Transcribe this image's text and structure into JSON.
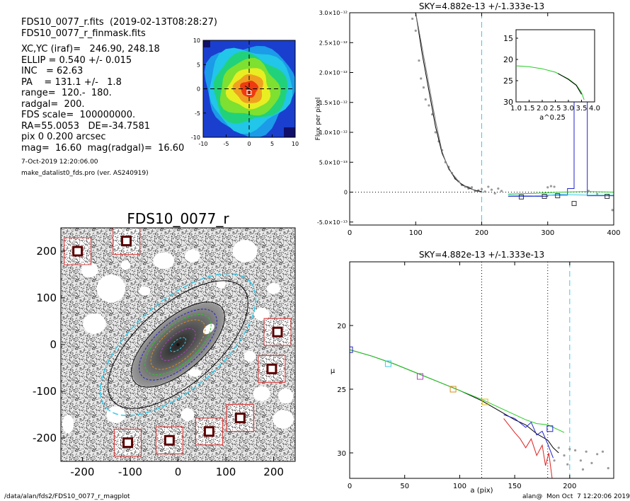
{
  "header": {
    "line1": "FDS10_0077_r.fits  (2019-02-13T08:28:27)",
    "line2": "FDS10_0077_r_finmask.fits"
  },
  "info_lines": [
    "XC,YC (iraf)=   246.90, 248.18",
    "ELLIP = 0.540 +/- 0.015",
    "INC   = 62.63",
    "PA    = 131.1 +/-   1.8",
    "range=  120.-  180.",
    "radgal=  200.",
    "FDS scale=  100000000.",
    "RA=55.0053   DE=-34.7581",
    "pix 0 0.200 arcsec",
    "mag=  16.60  mag(radgal)=  16.60"
  ],
  "date_line": "7-Oct-2019 12:20:06.00",
  "program_line": "make_datalist0_fds.pro (ver. AS240919)",
  "footer": {
    "left": "/data/alan/fds2/FDS10_0077_r_magplot",
    "right": "alan@  Mon Oct  7 12:20:06 2019"
  },
  "colors": {
    "profile_black": "#000000",
    "profile_green": "#22cc22",
    "profile_blue": "#2222cc",
    "profile_red": "#dd2222",
    "profile_gray": "#777777",
    "points_gray": "#9a9a9a",
    "sky_cyan": "#33ccee",
    "mask_red": "#dd4444",
    "ellipse_orange": "#d98c1a",
    "ellipse_purple": "#b040c0"
  },
  "chart_data": [
    {
      "type": "heatmap",
      "title": "",
      "x_ticks": [
        "-10",
        "-5",
        "0",
        "5",
        "10"
      ],
      "y_ticks": [
        "10",
        "5",
        "0",
        "-5",
        "-10"
      ],
      "xlim": [
        -10,
        10
      ],
      "ylim": [
        -10,
        10
      ],
      "colormap": [
        "#1a1aa0",
        "#1b73e8",
        "#22c6e8",
        "#21d27a",
        "#7ee030",
        "#f0f020",
        "#f0a020",
        "#ee3a10"
      ],
      "levels": [
        {
          "rx": 9.6,
          "ry": 9.2,
          "color": "#1b9be8"
        },
        {
          "rx": 9.0,
          "ry": 8.4,
          "color": "#22c6e8"
        },
        {
          "rx": 8.0,
          "ry": 7.0,
          "color": "#21d27a"
        },
        {
          "rx": 6.4,
          "ry": 5.8,
          "color": "#7ee030"
        },
        {
          "rx": 4.6,
          "ry": 4.2,
          "color": "#e8ee22"
        },
        {
          "rx": 3.2,
          "ry": 3.0,
          "color": "#f0a020"
        },
        {
          "rx": 1.9,
          "ry": 1.7,
          "color": "#ee3a10"
        }
      ]
    },
    {
      "type": "image",
      "title": "FDS10_0077_r",
      "x_ticks": [
        "-200",
        "-100",
        "0",
        "100",
        "200"
      ],
      "y_ticks": [
        "200",
        "100",
        "0",
        "-100",
        "-200"
      ],
      "xlim": [
        -245,
        245
      ],
      "ylim": [
        -250,
        250
      ],
      "masks": [
        {
          "x": -210,
          "y": 200,
          "r": 12
        },
        {
          "x": -108,
          "y": 222,
          "r": 12
        },
        {
          "x": 208,
          "y": 27,
          "r": 12
        },
        {
          "x": 196,
          "y": -52,
          "r": 12
        },
        {
          "x": 130,
          "y": -157,
          "r": 12
        },
        {
          "x": 65,
          "y": -186,
          "r": 12
        },
        {
          "x": -18,
          "y": -205,
          "r": 12
        },
        {
          "x": -105,
          "y": -210,
          "r": 12
        }
      ],
      "holes": [
        {
          "x": -185,
          "y": 160,
          "rx": 18,
          "ry": 16
        },
        {
          "x": -140,
          "y": 120,
          "rx": 30,
          "ry": 30
        },
        {
          "x": -30,
          "y": 180,
          "rx": 22,
          "ry": 18
        },
        {
          "x": 30,
          "y": 190,
          "rx": 16,
          "ry": 14
        },
        {
          "x": 140,
          "y": 200,
          "rx": 26,
          "ry": 24
        },
        {
          "x": -110,
          "y": 170,
          "rx": 10,
          "ry": 10
        },
        {
          "x": -175,
          "y": 45,
          "rx": 24,
          "ry": 22
        },
        {
          "x": 175,
          "y": 65,
          "rx": 16,
          "ry": 14
        },
        {
          "x": 150,
          "y": -25,
          "rx": 12,
          "ry": 12
        },
        {
          "x": 175,
          "y": -105,
          "rx": 18,
          "ry": 16
        },
        {
          "x": 225,
          "y": -110,
          "rx": 16,
          "ry": 16
        },
        {
          "x": 220,
          "y": -160,
          "rx": 22,
          "ry": 20
        },
        {
          "x": 20,
          "y": -150,
          "rx": 14,
          "ry": 14
        },
        {
          "x": -130,
          "y": -150,
          "rx": 20,
          "ry": 18
        },
        {
          "x": -230,
          "y": -170,
          "rx": 12,
          "ry": 20
        },
        {
          "x": -70,
          "y": 115,
          "rx": 12,
          "ry": 10
        },
        {
          "x": 90,
          "y": 130,
          "rx": 10,
          "ry": 10
        },
        {
          "x": 200,
          "y": 120,
          "rx": 14,
          "ry": 12
        },
        {
          "x": 35,
          "y": -60,
          "rx": 14,
          "ry": 8
        }
      ],
      "ellipse": {
        "pa_deg": 131.1,
        "ellip": 0.54
      },
      "isophote_a": [
        {
          "a": 20,
          "color": "#33ccee"
        },
        {
          "a": 45,
          "color": "#b040c0"
        },
        {
          "a": 70,
          "color": "#d98c1a"
        },
        {
          "a": 85,
          "color": "#22cc22"
        },
        {
          "a": 100,
          "color": "#2222cc"
        },
        {
          "a": 120,
          "color": "#000000"
        },
        {
          "a": 180,
          "color": "#000000"
        },
        {
          "a": 200,
          "color": "#33ccee"
        }
      ]
    },
    {
      "type": "line",
      "title": "SKY=4.882e-13 +/-1.333e-13",
      "xlabel": "",
      "ylabel": "Flux per pixel",
      "xlim": [
        0,
        400
      ],
      "ylim": [
        -5.5e-13,
        3e-12
      ],
      "x_ticks": [
        0,
        100,
        200,
        300,
        400
      ],
      "y_ticks": [
        {
          "v": 3e-12,
          "label": "3.0×10⁻¹²"
        },
        {
          "v": 2.5e-12,
          "label": "2.5×10⁻¹²"
        },
        {
          "v": 2e-12,
          "label": "2.0×10⁻¹²"
        },
        {
          "v": 1.5e-12,
          "label": "1.5×10⁻¹²"
        },
        {
          "v": 1e-12,
          "label": "1.0×10⁻¹²"
        },
        {
          "v": 5e-13,
          "label": "5.0×10⁻¹³"
        },
        {
          "v": 0,
          "label": "0"
        },
        {
          "v": -5e-13,
          "label": "-5.0×10⁻¹³"
        }
      ],
      "sky_line_x": 200,
      "series": [
        {
          "color": "#000000",
          "x": [
            100,
            110,
            120,
            130,
            140,
            150,
            160,
            170,
            180,
            190,
            200
          ],
          "y": [
            3e-12,
            2.3e-12,
            1.7e-12,
            1.1e-12,
            6.5e-13,
            4e-13,
            2.2e-13,
            1.3e-13,
            7e-14,
            3e-14,
            1e-14
          ]
        },
        {
          "color": "#777777",
          "x": [
            100,
            110,
            120,
            130,
            140,
            150,
            160,
            170,
            180,
            190,
            200
          ],
          "y": [
            3e-12,
            2.4e-12,
            1.8e-12,
            1.2e-12,
            6.8e-13,
            3.8e-13,
            2.5e-13,
            1.1e-13,
            9e-14,
            2e-14,
            0.0
          ]
        },
        {
          "color": "#2222cc",
          "step": true,
          "x": [
            240,
            260,
            280,
            300,
            320,
            330,
            340,
            350,
            360,
            400
          ],
          "y": [
            -7e-14,
            -7e-14,
            -7e-14,
            -5e-14,
            -5e-14,
            6e-14,
            2.4e-12,
            2.4e-12,
            -6e-14,
            -6e-14
          ]
        },
        {
          "color": "#22cc22",
          "x": [
            240,
            280,
            320,
            360,
            400
          ],
          "y": [
            -3e-14,
            -2e-14,
            0.0,
            1e-14,
            0.0
          ]
        },
        {
          "color": "#33ccee",
          "x": [
            240,
            280,
            320,
            360,
            400
          ],
          "y": [
            -5e-14,
            -6e-14,
            -4e-14,
            -5e-14,
            -5e-14
          ]
        }
      ],
      "points": [
        [
          95,
          2.9e-12
        ],
        [
          100,
          2.7e-12
        ],
        [
          105,
          2.2e-12
        ],
        [
          108,
          1.9e-12
        ],
        [
          112,
          1.75e-12
        ],
        [
          115,
          1.55e-12
        ],
        [
          120,
          1.45e-12
        ],
        [
          125,
          1.3e-12
        ],
        [
          130,
          1e-12
        ],
        [
          135,
          8.5e-13
        ],
        [
          140,
          7e-13
        ],
        [
          145,
          5e-13
        ],
        [
          150,
          4.2e-13
        ],
        [
          155,
          3.2e-13
        ],
        [
          160,
          2.3e-13
        ],
        [
          165,
          1.8e-13
        ],
        [
          170,
          1.2e-13
        ],
        [
          175,
          9e-14
        ],
        [
          180,
          6e-14
        ],
        [
          185,
          8e-14
        ],
        [
          190,
          2e-14
        ],
        [
          195,
          3e-14
        ],
        [
          200,
          5e-14
        ],
        [
          205,
          1e-14
        ],
        [
          210,
          9e-14
        ],
        [
          215,
          4e-14
        ],
        [
          220,
          -2e-14
        ],
        [
          225,
          6e-14
        ],
        [
          230,
          2e-14
        ],
        [
          300,
          8e-14
        ],
        [
          305,
          1e-13
        ],
        [
          310,
          9e-14
        ],
        [
          362,
          2e-14
        ],
        [
          375,
          -3e-14
        ],
        [
          392,
          -5e-14
        ],
        [
          398,
          -3e-13
        ]
      ],
      "squares": [
        [
          260,
          -8e-14
        ],
        [
          295,
          -7e-14
        ],
        [
          315,
          -6e-14
        ],
        [
          340,
          -1.9e-13
        ],
        [
          390,
          -7e-14
        ]
      ],
      "inset": {
        "xlabel": "a^0.25",
        "xlim": [
          1.0,
          4.0
        ],
        "ylim": [
          30,
          13
        ],
        "x_ticks": [
          "1.0",
          "1.5",
          "2.0",
          "2.5",
          "3.0",
          "3.5",
          "4.0"
        ],
        "y_ticks": [
          15,
          20,
          25,
          30
        ],
        "series": [
          {
            "color": "#22cc22",
            "x": [
              1.0,
              1.5,
              2.0,
              2.5,
              3.0,
              3.3,
              3.5,
              3.6
            ],
            "y": [
              21.5,
              21.7,
              22.2,
              23.0,
              24.6,
              26.0,
              27.8,
              29.5
            ]
          },
          {
            "color": "#000000",
            "x": [
              2.6,
              3.0,
              3.3,
              3.5
            ],
            "y": [
              23.3,
              24.7,
              26.1,
              28.2
            ]
          }
        ]
      }
    },
    {
      "type": "line",
      "title": "SKY=4.882e-13 +/-1.333e-13",
      "xlabel": "a (pix)",
      "ylabel": "μ",
      "xlim": [
        0,
        240
      ],
      "ylim": [
        32,
        15
      ],
      "x_ticks": [
        0,
        50,
        100,
        150,
        200
      ],
      "y_ticks": [
        20,
        25,
        30
      ],
      "vlines": [
        {
          "x": 120,
          "style": "dotted",
          "color": "#000000"
        },
        {
          "x": 180,
          "style": "dotted",
          "color": "#000000"
        },
        {
          "x": 200,
          "style": "dashed",
          "color": "#33ccee"
        }
      ],
      "series": [
        {
          "color": "#000000",
          "x": [
            0,
            20,
            40,
            60,
            80,
            100,
            120,
            140,
            150,
            160,
            170,
            180,
            185,
            190
          ],
          "y": [
            21.9,
            22.4,
            23.0,
            23.7,
            24.4,
            25.1,
            25.9,
            26.9,
            27.4,
            27.8,
            28.5,
            29.0,
            29.6,
            30.0
          ]
        },
        {
          "color": "#22cc22",
          "x": [
            0,
            20,
            40,
            60,
            80,
            100,
            120,
            140,
            160,
            170,
            180,
            190,
            195
          ],
          "y": [
            21.9,
            22.4,
            23.0,
            23.7,
            24.4,
            25.1,
            25.8,
            26.6,
            27.4,
            27.7,
            27.8,
            28.2,
            28.4
          ]
        },
        {
          "color": "#2222cc",
          "x": [
            140,
            150,
            160,
            165,
            170,
            175,
            180,
            185
          ],
          "y": [
            27.0,
            27.3,
            28.0,
            27.6,
            28.6,
            28.3,
            29.3,
            30.4
          ]
        },
        {
          "color": "#dd2222",
          "x": [
            140,
            150,
            155,
            160,
            165,
            170,
            175,
            178,
            181,
            184
          ],
          "y": [
            27.3,
            28.4,
            28.9,
            29.6,
            28.9,
            30.2,
            29.4,
            31.0,
            30.0,
            32.0
          ]
        }
      ],
      "points": [
        [
          190,
          29.6
        ],
        [
          195,
          30.2
        ],
        [
          200,
          29.7
        ],
        [
          205,
          29.8
        ],
        [
          210,
          30.6
        ],
        [
          215,
          29.9
        ],
        [
          220,
          30.8
        ],
        [
          225,
          30.1
        ],
        [
          230,
          29.9
        ],
        [
          235,
          31.2
        ],
        [
          198,
          30.9
        ],
        [
          212,
          31.3
        ],
        [
          186,
          30.6
        ]
      ],
      "squares": [
        {
          "x": 0,
          "y": 21.9,
          "color": "#2222cc"
        },
        {
          "x": 35,
          "y": 23.0,
          "color": "#33ccee"
        },
        {
          "x": 64,
          "y": 24.0,
          "color": "#b040c0"
        },
        {
          "x": 94,
          "y": 25.0,
          "color": "#d98c1a"
        },
        {
          "x": 123,
          "y": 26.0,
          "color": "#d9c01a"
        },
        {
          "x": 182,
          "y": 28.1,
          "color": "#2222cc"
        }
      ]
    }
  ]
}
